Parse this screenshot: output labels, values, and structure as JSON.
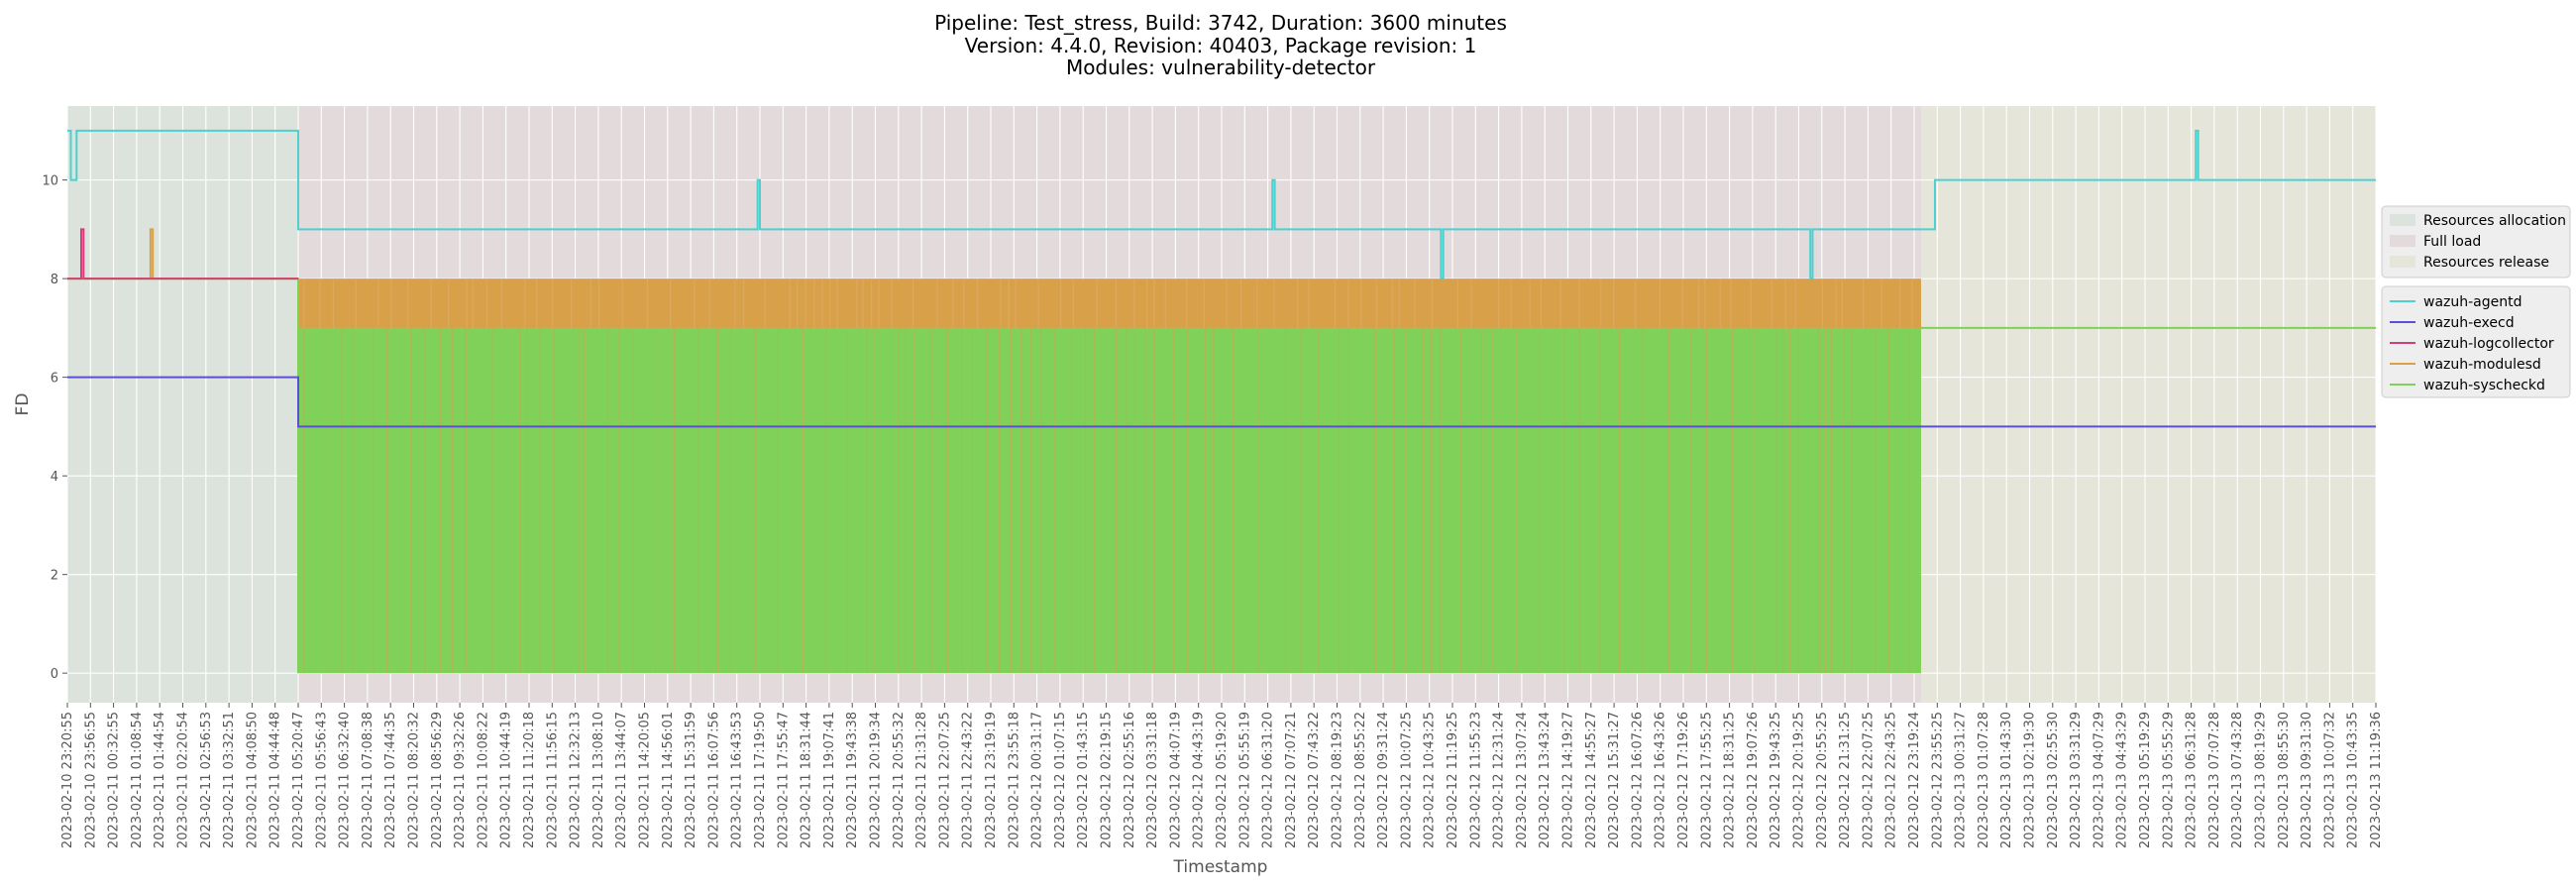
{
  "chart_data": {
    "type": "line",
    "title_lines": [
      "Pipeline: Test_stress, Build: 3742, Duration: 3600 minutes",
      "Version: 4.4.0, Revision: 40403, Package revision: 1",
      "Modules: vulnerability-detector"
    ],
    "xlabel": "Timestamp",
    "ylabel": "FD",
    "ylim": [
      -0.6,
      11.5
    ],
    "yticks": [
      0,
      2,
      4,
      6,
      8,
      10
    ],
    "grid": true,
    "legend_position": "right",
    "x_tick_labels": [
      "2023-02-10 23:20:55",
      "2023-02-10 23:56:55",
      "2023-02-11 00:32:55",
      "2023-02-11 01:08:54",
      "2023-02-11 01:44:54",
      "2023-02-11 02:20:54",
      "2023-02-11 02:56:53",
      "2023-02-11 03:32:51",
      "2023-02-11 04:08:50",
      "2023-02-11 04:44:48",
      "2023-02-11 05:20:47",
      "2023-02-11 05:56:43",
      "2023-02-11 06:32:40",
      "2023-02-11 07:08:38",
      "2023-02-11 07:44:35",
      "2023-02-11 08:20:32",
      "2023-02-11 08:56:29",
      "2023-02-11 09:32:26",
      "2023-02-11 10:08:22",
      "2023-02-11 10:44:19",
      "2023-02-11 11:20:18",
      "2023-02-11 11:56:15",
      "2023-02-11 12:32:13",
      "2023-02-11 13:08:10",
      "2023-02-11 13:44:07",
      "2023-02-11 14:20:05",
      "2023-02-11 14:56:01",
      "2023-02-11 15:31:59",
      "2023-02-11 16:07:56",
      "2023-02-11 16:43:53",
      "2023-02-11 17:19:50",
      "2023-02-11 17:55:47",
      "2023-02-11 18:31:44",
      "2023-02-11 19:07:41",
      "2023-02-11 19:43:38",
      "2023-02-11 20:19:34",
      "2023-02-11 20:55:32",
      "2023-02-11 21:31:28",
      "2023-02-11 22:07:25",
      "2023-02-11 22:43:22",
      "2023-02-11 23:19:19",
      "2023-02-11 23:55:18",
      "2023-02-12 00:31:17",
      "2023-02-12 01:07:15",
      "2023-02-12 01:43:15",
      "2023-02-12 02:19:15",
      "2023-02-12 02:55:16",
      "2023-02-12 03:31:18",
      "2023-02-12 04:07:19",
      "2023-02-12 04:43:19",
      "2023-02-12 05:19:20",
      "2023-02-12 05:55:19",
      "2023-02-12 06:31:20",
      "2023-02-12 07:07:21",
      "2023-02-12 07:43:22",
      "2023-02-12 08:19:23",
      "2023-02-12 08:55:22",
      "2023-02-12 09:31:24",
      "2023-02-12 10:07:25",
      "2023-02-12 10:43:25",
      "2023-02-12 11:19:25",
      "2023-02-12 11:55:23",
      "2023-02-12 12:31:24",
      "2023-02-12 13:07:24",
      "2023-02-12 13:43:24",
      "2023-02-12 14:19:27",
      "2023-02-12 14:55:27",
      "2023-02-12 15:31:27",
      "2023-02-12 16:07:26",
      "2023-02-12 16:43:26",
      "2023-02-12 17:19:26",
      "2023-02-12 17:55:25",
      "2023-02-12 18:31:25",
      "2023-02-12 19:07:26",
      "2023-02-12 19:43:25",
      "2023-02-12 20:19:25",
      "2023-02-12 20:55:25",
      "2023-02-12 21:31:25",
      "2023-02-12 22:07:25",
      "2023-02-12 22:43:25",
      "2023-02-12 23:19:24",
      "2023-02-12 23:55:25",
      "2023-02-13 00:31:27",
      "2023-02-13 01:07:28",
      "2023-02-13 01:43:30",
      "2023-02-13 02:19:30",
      "2023-02-13 02:55:30",
      "2023-02-13 03:31:29",
      "2023-02-13 04:07:29",
      "2023-02-13 04:43:29",
      "2023-02-13 05:19:29",
      "2023-02-13 05:55:29",
      "2023-02-13 06:31:28",
      "2023-02-13 07:07:28",
      "2023-02-13 07:43:28",
      "2023-02-13 08:19:29",
      "2023-02-13 08:55:30",
      "2023-02-13 09:31:30",
      "2023-02-13 10:07:32",
      "2023-02-13 10:43:35",
      "2023-02-13 11:19:36"
    ],
    "phases": [
      {
        "name": "Resources allocation",
        "start_index": 0,
        "end_index": 10,
        "color": "#dbe3dc"
      },
      {
        "name": "Full load",
        "start_index": 10,
        "end_index": 80.3,
        "color": "#e3dadb"
      },
      {
        "name": "Resources release",
        "start_index": 80.3,
        "end_index": 100,
        "color": "#e5e5da"
      }
    ],
    "series": [
      {
        "name": "wazuh-agentd",
        "color": "#4dd0d0",
        "x": [
          0,
          0.15,
          0.15,
          0.4,
          0.4,
          10,
          10,
          29.9,
          29.9,
          30,
          30,
          52.2,
          52.2,
          52.3,
          52.3,
          59.5,
          59.5,
          59.6,
          59.6,
          75.5,
          75.5,
          75.6,
          75.6,
          80.9,
          80.9,
          92.2,
          92.2,
          92.3,
          92.3,
          100
        ],
        "values": [
          11,
          11,
          10,
          10,
          11,
          11,
          9,
          9,
          10,
          10,
          9,
          9,
          10,
          10,
          9,
          9,
          8,
          8,
          9,
          9,
          8,
          8,
          9,
          9,
          10,
          10,
          11,
          11,
          10,
          10
        ]
      },
      {
        "name": "wazuh-execd",
        "color": "#5b4fd6",
        "x": [
          0,
          10,
          10,
          80.3,
          80.3,
          100
        ],
        "values": [
          6,
          6,
          5,
          5,
          5,
          5
        ]
      },
      {
        "name": "wazuh-logcollector",
        "color": "#d63c7a",
        "x": [
          0,
          0.6,
          0.6,
          0.7,
          0.7,
          10
        ],
        "values": [
          8,
          8,
          9,
          9,
          8,
          8
        ]
      },
      {
        "name": "wazuh-modulesd",
        "color": "#d9a04a",
        "x": [
          0,
          3.6,
          3.6,
          3.7,
          3.7,
          10,
          10,
          80.3
        ],
        "values": [
          8,
          8,
          9,
          9,
          8,
          8,
          0,
          8
        ],
        "dense_oscillation": {
          "from_index": 10,
          "to_index": 80.3,
          "low": 0,
          "high": 8
        }
      },
      {
        "name": "wazuh-syscheckd",
        "color": "#7fd15a",
        "x": [
          0,
          10,
          10,
          80.3,
          80.3,
          100
        ],
        "values": [
          8,
          8,
          0,
          7,
          7,
          7
        ],
        "dense_oscillation": {
          "from_index": 10,
          "to_index": 80.3,
          "low": 0,
          "high": 7
        }
      }
    ]
  }
}
